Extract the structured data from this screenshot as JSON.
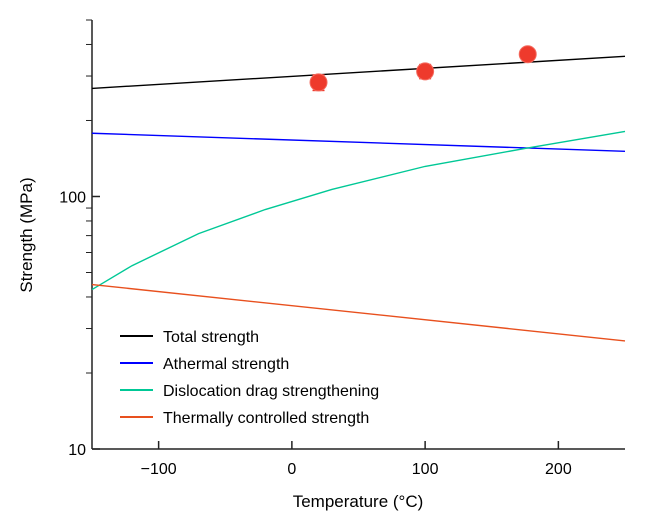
{
  "chart_data": {
    "type": "line",
    "xlabel": "Temperature (°C)",
    "ylabel": "Strength (MPa)",
    "xlim": [
      -150,
      250
    ],
    "ylim": [
      10,
      500
    ],
    "yscale": "log",
    "grid": false,
    "legend_position": "bottom-left",
    "x_ticks": [
      -100,
      0,
      100,
      200
    ],
    "x_tick_labels": [
      "−100",
      "0",
      "100",
      "200"
    ],
    "y_ticks": [
      10,
      100
    ],
    "y_tick_labels": [
      "10",
      "100"
    ],
    "series": [
      {
        "name": "Total strength",
        "color": "#000000",
        "x": [
          -150,
          250
        ],
        "y": [
          268,
          359
        ]
      },
      {
        "name": "Athermal strength",
        "color": "#0000ff",
        "x": [
          -150,
          250
        ],
        "y": [
          178,
          151
        ]
      },
      {
        "name": "Dislocation drag strengthening",
        "color": "#00c896",
        "x": [
          -150,
          -120,
          -70,
          -20,
          30,
          100,
          175,
          250
        ],
        "y": [
          42.8,
          53.2,
          71.3,
          88.8,
          106.6,
          131.6,
          155,
          181
        ]
      },
      {
        "name": "Thermally controlled strength",
        "color": "#e8501e",
        "x": [
          -150,
          250
        ],
        "y": [
          44.8,
          26.8
        ]
      }
    ],
    "points": {
      "color": "#ee3a2c",
      "x": [
        20,
        100,
        177
      ],
      "y": [
        283,
        313,
        366
      ],
      "yerr": [
        20,
        20,
        14
      ]
    }
  }
}
